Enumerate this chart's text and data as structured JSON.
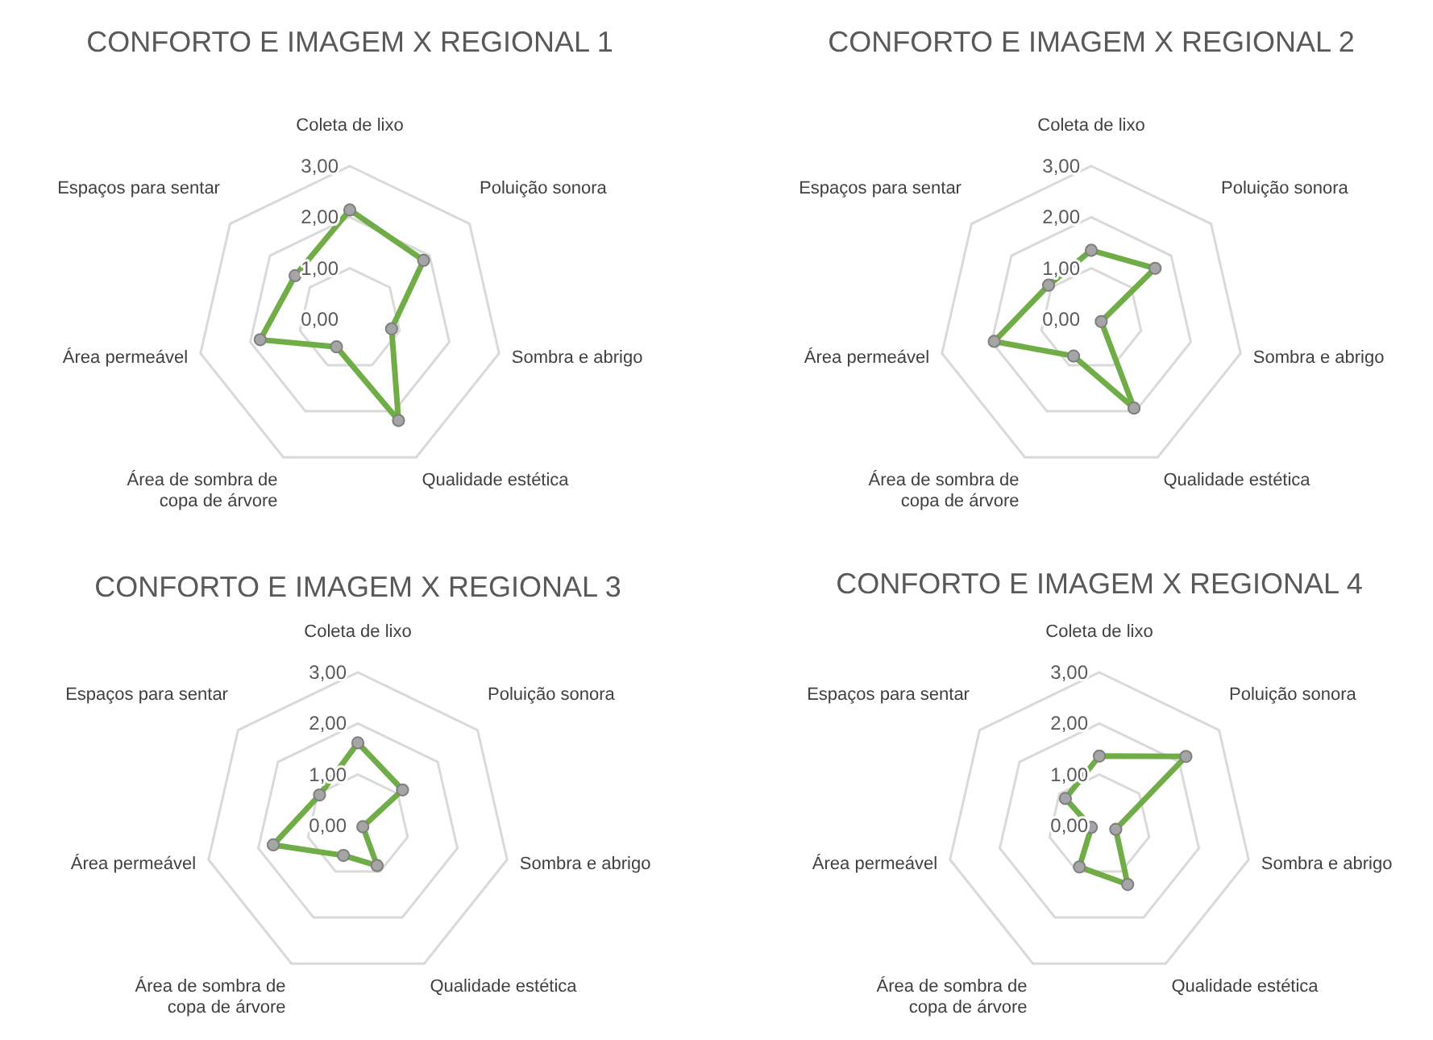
{
  "chart_data": [
    {
      "type": "radar",
      "title": "CONFORTO E IMAGEM X REGIONAL 1",
      "categories": [
        "Coleta de lixo",
        "Poluição sonora",
        "Sombra e abrigo",
        "Qualidade estética",
        "Área de sombra de copa de árvore",
        "Área permeável",
        "Espaços para sentar"
      ],
      "series": [
        {
          "color": "#70ad47",
          "values": [
            2.14,
            1.85,
            0.84,
            2.2,
            0.6,
            1.8,
            1.37
          ]
        }
      ],
      "ylim": [
        0,
        3
      ],
      "yticks": [
        {
          "value": 0,
          "label": "0,00"
        },
        {
          "value": 1,
          "label": "1,00"
        },
        {
          "value": 2,
          "label": "2,00"
        },
        {
          "value": 3,
          "label": "3,00"
        }
      ],
      "grid": true,
      "marker": "circle"
    },
    {
      "type": "radar",
      "title": "CONFORTO E IMAGEM X REGIONAL 2",
      "categories": [
        "Coleta de lixo",
        "Poluição sonora",
        "Sombra e abrigo",
        "Qualidade estética",
        "Área de sombra de copa de árvore",
        "Área permeável",
        "Espaços para sentar"
      ],
      "series": [
        {
          "color": "#70ad47",
          "values": [
            1.35,
            1.6,
            0.2,
            1.93,
            0.8,
            1.95,
            1.07
          ]
        }
      ],
      "ylim": [
        0,
        3
      ],
      "yticks": [
        {
          "value": 0,
          "label": "0,00"
        },
        {
          "value": 1,
          "label": "1,00"
        },
        {
          "value": 2,
          "label": "2,00"
        },
        {
          "value": 3,
          "label": "3,00"
        }
      ],
      "grid": true,
      "marker": "circle"
    },
    {
      "type": "radar",
      "title": "CONFORTO E IMAGEM X REGIONAL 3",
      "categories": [
        "Coleta de lixo",
        "Poluição sonora",
        "Sombra e abrigo",
        "Qualidade estética",
        "Área de sombra de copa de árvore",
        "Área permeável",
        "Espaços para sentar"
      ],
      "series": [
        {
          "color": "#70ad47",
          "values": [
            1.62,
            1.12,
            0.1,
            0.87,
            0.65,
            1.7,
            0.96
          ]
        }
      ],
      "ylim": [
        0,
        3
      ],
      "yticks": [
        {
          "value": 0,
          "label": "0,00"
        },
        {
          "value": 1,
          "label": "1,00"
        },
        {
          "value": 2,
          "label": "2,00"
        },
        {
          "value": 3,
          "label": "3,00"
        }
      ],
      "grid": true,
      "marker": "circle"
    },
    {
      "type": "radar",
      "title": "CONFORTO E IMAGEM X REGIONAL 4",
      "categories": [
        "Coleta de lixo",
        "Poluição sonora",
        "Sombra e abrigo",
        "Qualidade estética",
        "Área de sombra de copa de árvore",
        "Área permeável",
        "Espaços para sentar"
      ],
      "series": [
        {
          "color": "#70ad47",
          "values": [
            1.36,
            2.17,
            0.33,
            1.28,
            0.9,
            0.16,
            0.85
          ]
        }
      ],
      "ylim": [
        0,
        3
      ],
      "yticks": [
        {
          "value": 0,
          "label": "0,00"
        },
        {
          "value": 1,
          "label": "1,00"
        },
        {
          "value": 2,
          "label": "2,00"
        },
        {
          "value": 3,
          "label": "3,00"
        }
      ],
      "grid": true,
      "marker": "circle"
    }
  ]
}
